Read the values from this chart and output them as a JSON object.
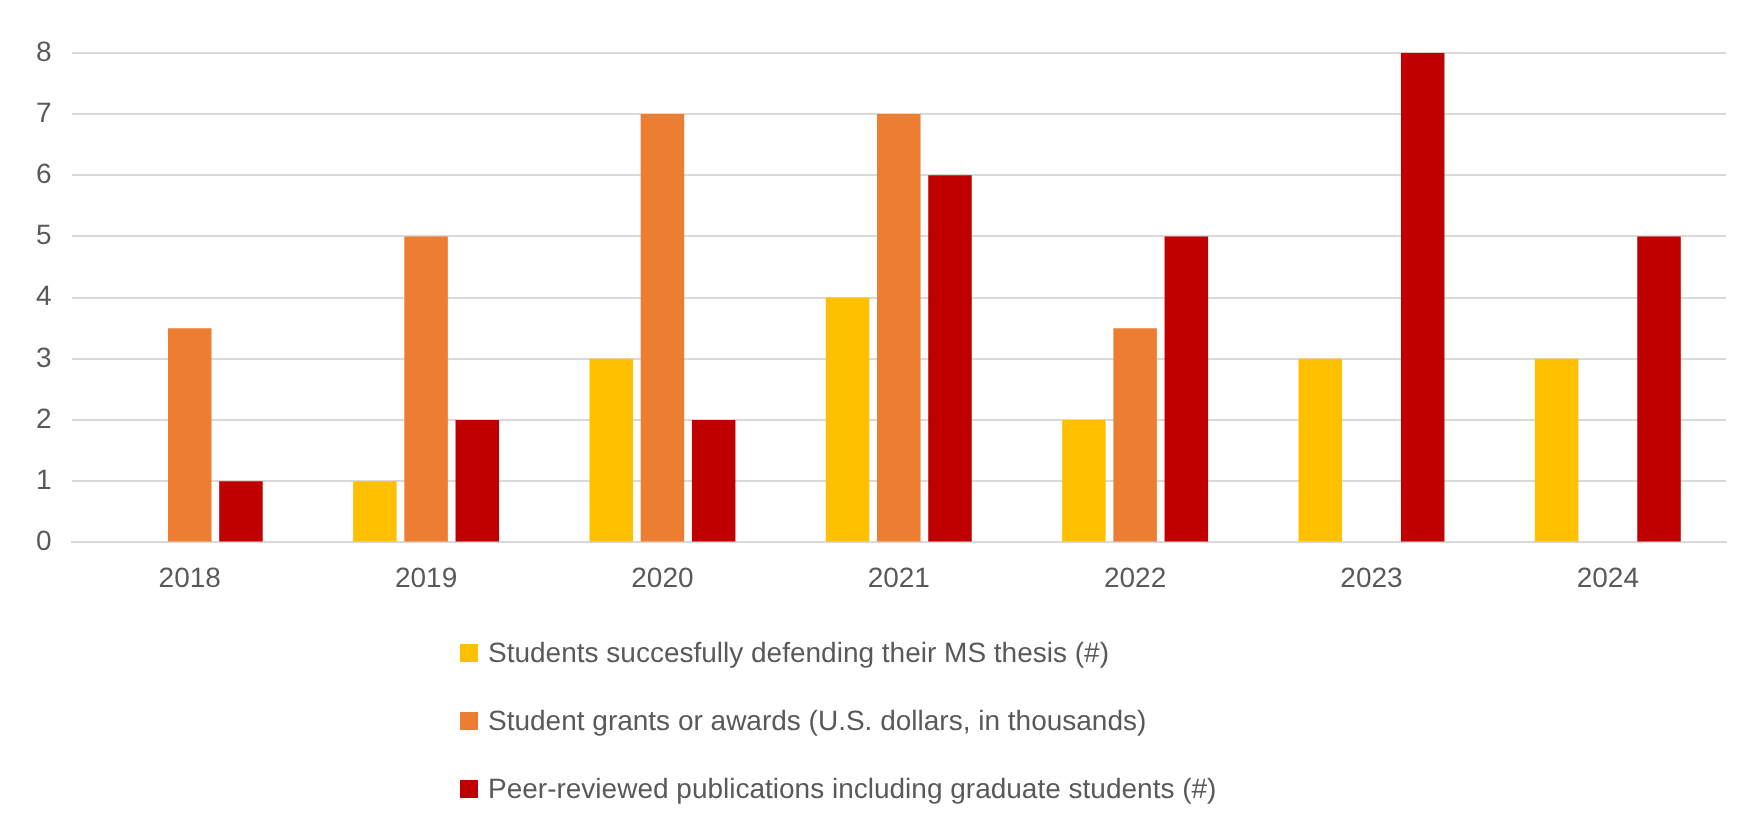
{
  "chart_data": {
    "type": "bar",
    "categories": [
      "2018",
      "2019",
      "2020",
      "2021",
      "2022",
      "2023",
      "2024"
    ],
    "series": [
      {
        "name": "Students succesfully defending their MS thesis (#)",
        "color": "#ffc000",
        "values": [
          null,
          1,
          3,
          4,
          2,
          3,
          3
        ]
      },
      {
        "name": "Student grants or awards (U.S. dollars, in thousands)",
        "color": "#ed7d31",
        "values": [
          3.5,
          5,
          7,
          7,
          3.5,
          null,
          null
        ]
      },
      {
        "name": "Peer-reviewed publications including graduate students (#)",
        "color": "#c00000",
        "values": [
          1,
          2,
          2,
          6,
          5,
          8,
          5
        ]
      }
    ],
    "ylim": [
      0,
      8
    ],
    "yticks": [
      0,
      1,
      2,
      3,
      4,
      5,
      6,
      7,
      8
    ],
    "grid": "y",
    "legend": "bottom"
  }
}
